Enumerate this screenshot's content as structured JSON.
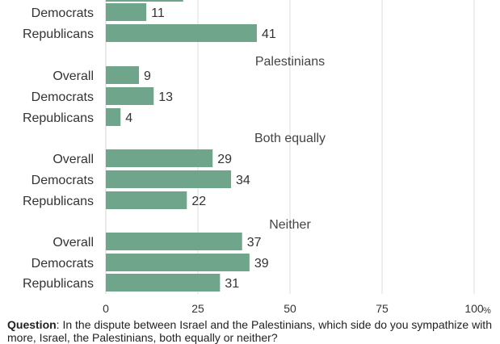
{
  "chart_data": {
    "type": "bar",
    "orientation": "horizontal",
    "bar_color": "#6fa58a",
    "grid_color": "#dddddd",
    "xlim": [
      0,
      100
    ],
    "ticks": [
      0,
      25,
      50,
      75,
      100
    ],
    "tick_labels": [
      "0",
      "25",
      "50",
      "75",
      "100"
    ],
    "unit": "%",
    "partial_top_bar_value": 21,
    "groups": [
      {
        "name": "",
        "bars": [
          {
            "label": "Democrats",
            "value": 11
          },
          {
            "label": "Republicans",
            "value": 41
          }
        ]
      },
      {
        "name": "Palestinians",
        "bars": [
          {
            "label": "Overall",
            "value": 9
          },
          {
            "label": "Democrats",
            "value": 13
          },
          {
            "label": "Republicans",
            "value": 4
          }
        ]
      },
      {
        "name": "Both equally",
        "bars": [
          {
            "label": "Overall",
            "value": 29
          },
          {
            "label": "Democrats",
            "value": 34
          },
          {
            "label": "Republicans",
            "value": 22
          }
        ]
      },
      {
        "name": "Neither",
        "bars": [
          {
            "label": "Overall",
            "value": 37
          },
          {
            "label": "Democrats",
            "value": 39
          },
          {
            "label": "Republicans",
            "value": 31
          }
        ]
      }
    ]
  },
  "question": {
    "label": "Question",
    "text": ": In the dispute between Israel and the Palestinians, which side do you sympathize with more, Israel, the Palestinians, both equally or neither?"
  }
}
